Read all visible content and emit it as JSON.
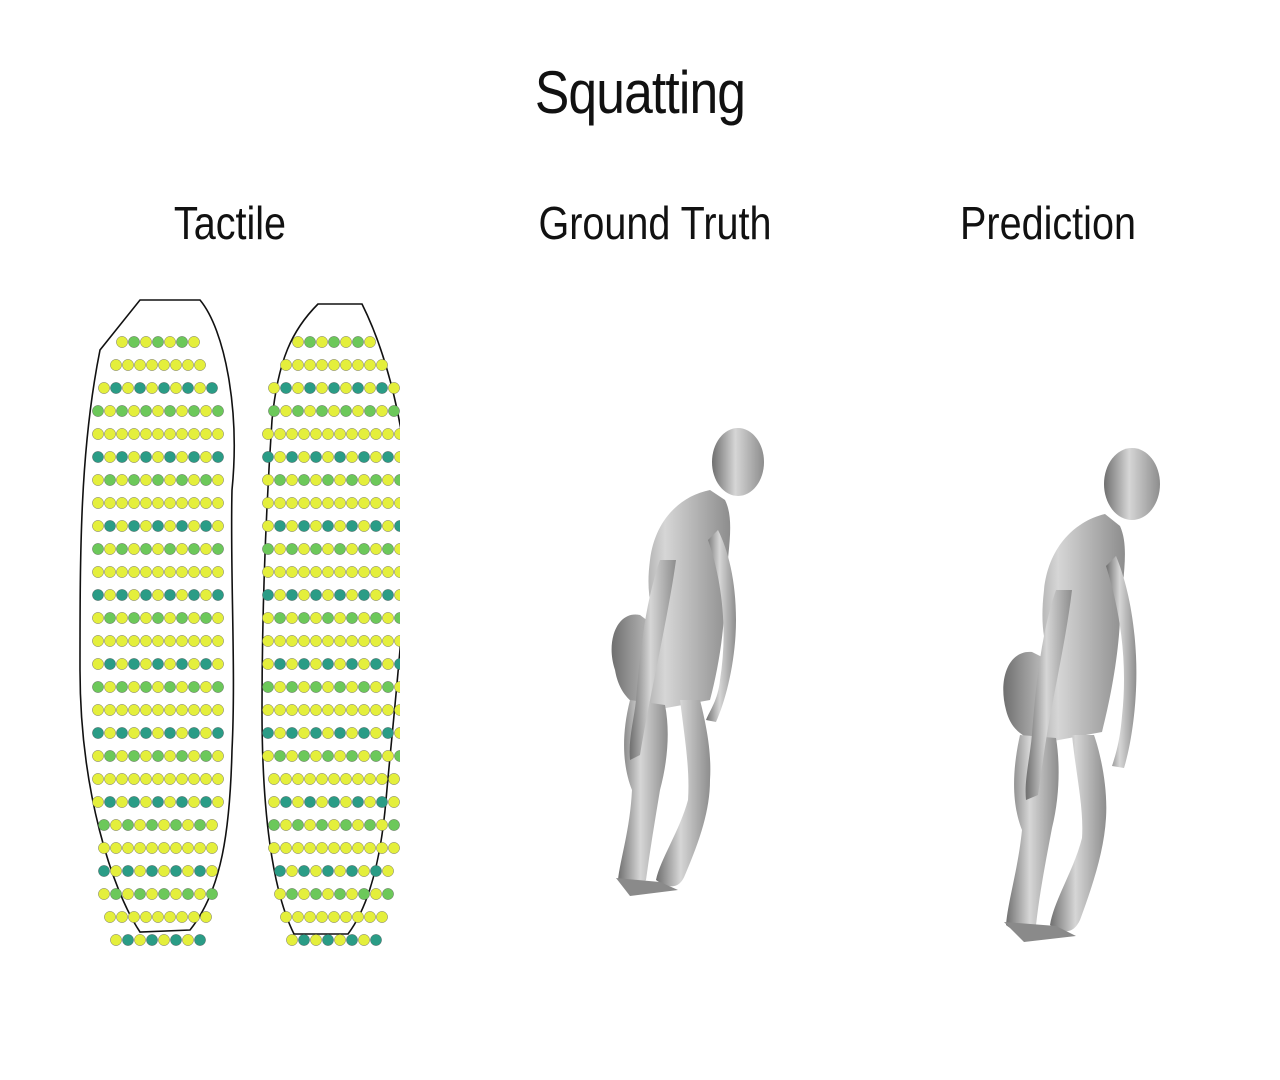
{
  "title": "Squatting",
  "columns": {
    "tactile": "Tactile",
    "ground_truth": "Ground Truth",
    "prediction": "Prediction"
  },
  "colors": {
    "outline": "#111111",
    "body_gray": "#b8b8b8",
    "body_shadow": "#7d7d7d",
    "pressure_low": "#e4ef3c",
    "pressure_mid": "#6cc85a",
    "pressure_high": "#2a9c86",
    "pressure_max": "#2a5f8c"
  }
}
